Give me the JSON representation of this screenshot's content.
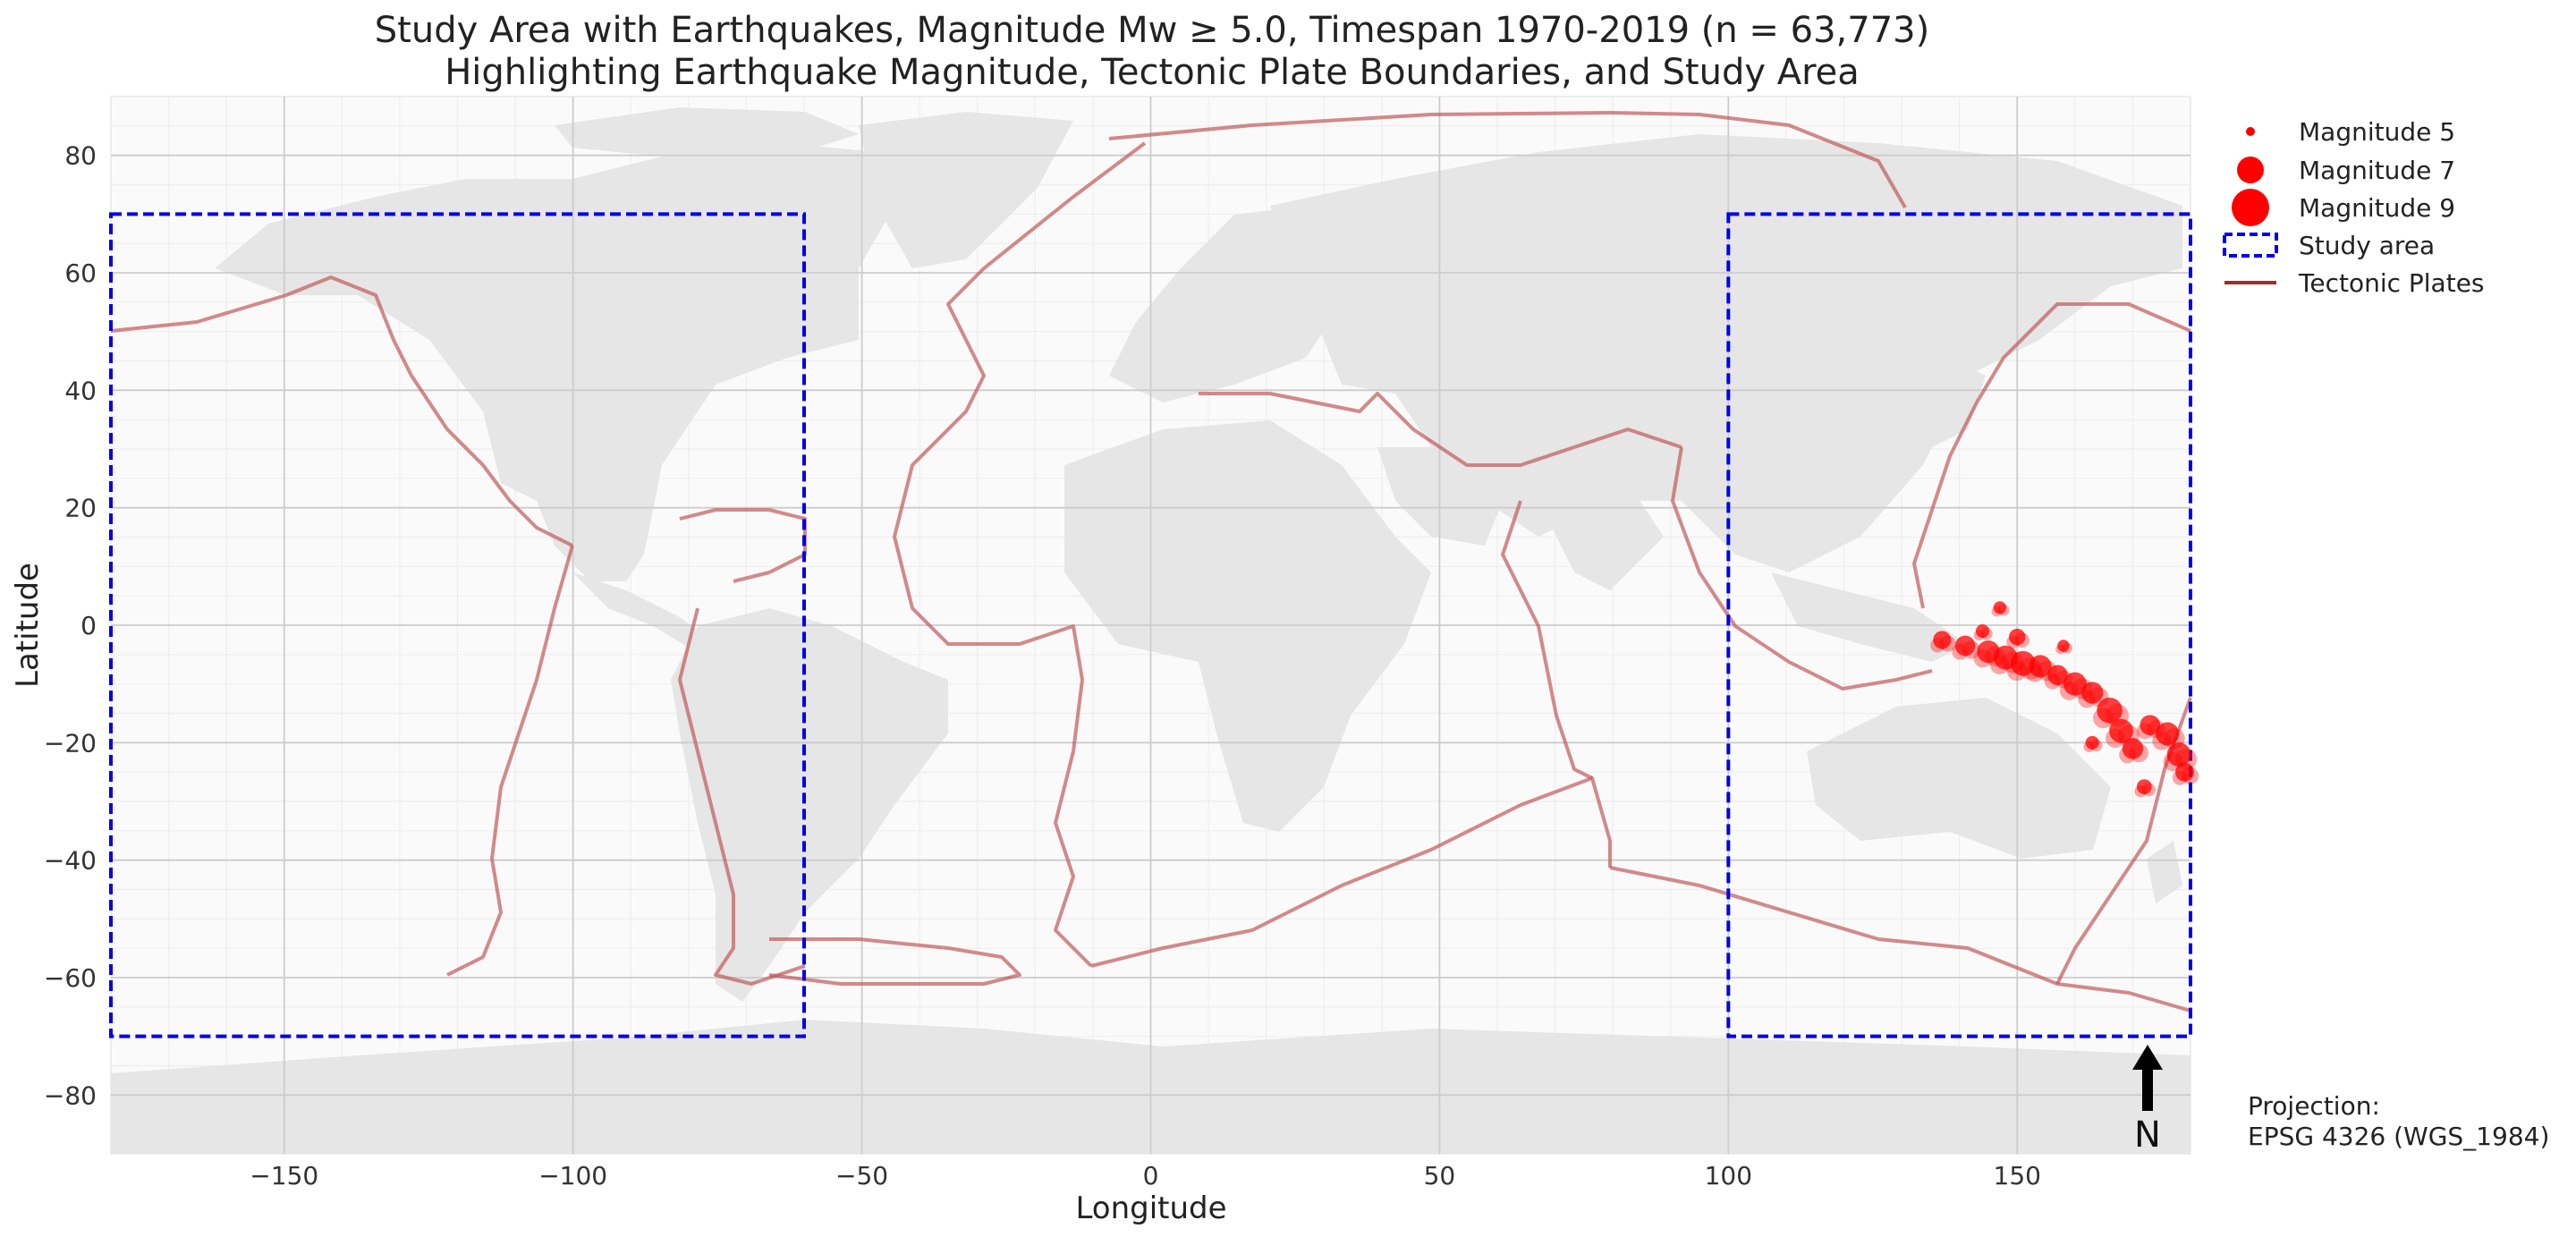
{
  "chart_data": {
    "type": "scatter",
    "title": "Study Area with Earthquakes, Magnitude Mw ≥ 5.0, Timespan 1970-2019 (n = 63,773)",
    "subtitle": "Highlighting Earthquake Magnitude, Tectonic Plate Boundaries, and Study Area",
    "xlabel": "Longitude",
    "ylabel": "Latitude",
    "xlim": [
      -180,
      180
    ],
    "ylim": [
      -90,
      90
    ],
    "x_ticks": [
      -150,
      -100,
      -50,
      0,
      50,
      100,
      150
    ],
    "y_ticks": [
      -80,
      -60,
      -40,
      -20,
      0,
      20,
      40,
      60,
      80
    ],
    "grid": true,
    "legend_position": "right",
    "legend": [
      {
        "label": "Magnitude 5",
        "kind": "marker",
        "magnitude": 5
      },
      {
        "label": "Magnitude 7",
        "kind": "marker",
        "magnitude": 7
      },
      {
        "label": "Magnitude 9",
        "kind": "marker",
        "magnitude": 9
      },
      {
        "label": "Study area",
        "kind": "dashed-rect"
      },
      {
        "label": "Tectonic Plates",
        "kind": "line"
      }
    ],
    "study_area": [
      {
        "lon_min": -180,
        "lon_max": -60,
        "lat_min": -70,
        "lat_max": 70
      },
      {
        "lon_min": 100,
        "lon_max": 180,
        "lat_min": -70,
        "lat_max": 70
      }
    ],
    "earthquake_clusters": [
      {
        "lon": 137,
        "lat": -2.5,
        "magnitude": 6.2
      },
      {
        "lon": 141,
        "lat": -3.5,
        "magnitude": 6.5
      },
      {
        "lon": 145,
        "lat": -4.5,
        "magnitude": 6.8
      },
      {
        "lon": 148,
        "lat": -5.5,
        "magnitude": 7.0
      },
      {
        "lon": 151,
        "lat": -6.5,
        "magnitude": 7.1
      },
      {
        "lon": 150,
        "lat": -2.0,
        "magnitude": 6.0
      },
      {
        "lon": 154,
        "lat": -7.0,
        "magnitude": 6.8
      },
      {
        "lon": 157,
        "lat": -8.5,
        "magnitude": 6.5
      },
      {
        "lon": 160,
        "lat": -10.0,
        "magnitude": 6.9
      },
      {
        "lon": 163,
        "lat": -11.5,
        "magnitude": 6.7
      },
      {
        "lon": 166,
        "lat": -14.5,
        "magnitude": 7.2
      },
      {
        "lon": 168,
        "lat": -18.0,
        "magnitude": 7.0
      },
      {
        "lon": 170,
        "lat": -21.0,
        "magnitude": 6.6
      },
      {
        "lon": 173,
        "lat": -17.0,
        "magnitude": 6.5
      },
      {
        "lon": 176,
        "lat": -18.5,
        "magnitude": 6.9
      },
      {
        "lon": 178,
        "lat": -22.0,
        "magnitude": 7.0
      },
      {
        "lon": 179,
        "lat": -25.0,
        "magnitude": 6.3
      },
      {
        "lon": 172,
        "lat": -27.5,
        "magnitude": 5.8
      },
      {
        "lon": 163,
        "lat": -20.0,
        "magnitude": 5.6
      },
      {
        "lon": 147,
        "lat": 3.0,
        "magnitude": 5.5
      },
      {
        "lon": 144,
        "lat": -1.0,
        "magnitude": 5.6
      },
      {
        "lon": 158,
        "lat": -3.5,
        "magnitude": 5.4
      }
    ],
    "projection_label": "Projection:",
    "projection_value": "EPSG 4326 (WGS_1984)",
    "north_label": "N"
  },
  "colors": {
    "land": "#e6e6e6",
    "grid": "#cccccc",
    "minor_grid": "#eeeeee",
    "plates": "#c0595a",
    "study_area": "#0000ee",
    "quakes": "#ff0000"
  }
}
